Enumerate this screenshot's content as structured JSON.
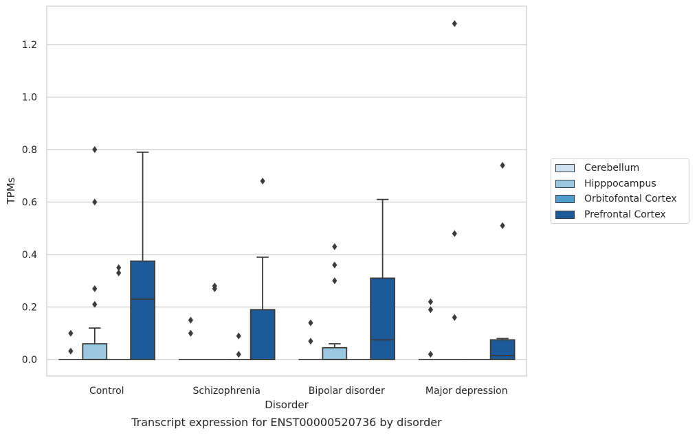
{
  "chart_data": {
    "type": "box",
    "caption": "Transcript expression for ENST00000520736 by disorder",
    "xlabel": "Disorder",
    "ylabel": "TPMs",
    "ylim": [
      -0.063,
      1.345
    ],
    "yticks": [
      0.0,
      0.2,
      0.4,
      0.6,
      0.8,
      1.0,
      1.2
    ],
    "grid": true,
    "legend_position": "right",
    "categories": [
      "Control",
      "Schizophrenia",
      "Bipolar disorder",
      "Major depression"
    ],
    "series": [
      {
        "name": "Cerebellum",
        "color": "#d0e2f2",
        "boxes": [
          {
            "q1": 0,
            "median": 0,
            "q3": 0,
            "whisker_low": 0,
            "whisker_high": 0,
            "outliers": [
              0.032,
              0.1
            ]
          },
          {
            "q1": 0,
            "median": 0,
            "q3": 0,
            "whisker_low": 0,
            "whisker_high": 0,
            "outliers": [
              0.1,
              0.15
            ]
          },
          {
            "q1": 0,
            "median": 0,
            "q3": 0,
            "whisker_low": 0,
            "whisker_high": 0,
            "outliers": [
              0.07,
              0.14
            ]
          },
          {
            "q1": 0,
            "median": 0,
            "q3": 0,
            "whisker_low": 0,
            "whisker_high": 0,
            "outliers": [
              0.02,
              0.19,
              0.22
            ]
          }
        ]
      },
      {
        "name": "Hipppocampus",
        "color": "#9ac8e0",
        "boxes": [
          {
            "q1": 0,
            "median": 0,
            "q3": 0.06,
            "whisker_low": 0,
            "whisker_high": 0.12,
            "outliers": [
              0.21,
              0.27,
              0.6,
              0.8
            ]
          },
          {
            "q1": 0,
            "median": 0,
            "q3": 0,
            "whisker_low": 0,
            "whisker_high": 0,
            "outliers": [
              0.27,
              0.28
            ]
          },
          {
            "q1": 0,
            "median": 0,
            "q3": 0.045,
            "whisker_low": 0,
            "whisker_high": 0.06,
            "outliers": [
              0.3,
              0.36,
              0.43
            ]
          },
          {
            "q1": 0,
            "median": 0,
            "q3": 0,
            "whisker_low": 0,
            "whisker_high": 0,
            "outliers": [
              0.16,
              0.48,
              1.28
            ]
          }
        ]
      },
      {
        "name": "Orbitofontal Cortex",
        "color": "#529dcc",
        "boxes": [
          {
            "q1": 0,
            "median": 0,
            "q3": 0,
            "whisker_low": 0,
            "whisker_high": 0,
            "outliers": [
              0.33,
              0.35
            ]
          },
          {
            "q1": 0,
            "median": 0,
            "q3": 0,
            "whisker_low": 0,
            "whisker_high": 0,
            "outliers": [
              0.02,
              0.09
            ]
          },
          {
            "q1": 0,
            "median": 0,
            "q3": 0,
            "whisker_low": 0,
            "whisker_high": 0,
            "outliers": []
          },
          {
            "q1": 0,
            "median": 0,
            "q3": 0,
            "whisker_low": 0,
            "whisker_high": 0,
            "outliers": []
          }
        ]
      },
      {
        "name": "Prefrontal Cortex",
        "color": "#1c5a99",
        "boxes": [
          {
            "q1": 0,
            "median": 0.23,
            "q3": 0.375,
            "whisker_low": 0,
            "whisker_high": 0.79,
            "outliers": []
          },
          {
            "q1": 0,
            "median": 0,
            "q3": 0.19,
            "whisker_low": 0,
            "whisker_high": 0.39,
            "outliers": [
              0.68
            ]
          },
          {
            "q1": 0,
            "median": 0.075,
            "q3": 0.31,
            "whisker_low": 0,
            "whisker_high": 0.61,
            "outliers": []
          },
          {
            "q1": 0,
            "median": 0.015,
            "q3": 0.075,
            "whisker_low": 0,
            "whisker_high": 0.08,
            "outliers": [
              0.51,
              0.74
            ]
          }
        ]
      }
    ]
  }
}
